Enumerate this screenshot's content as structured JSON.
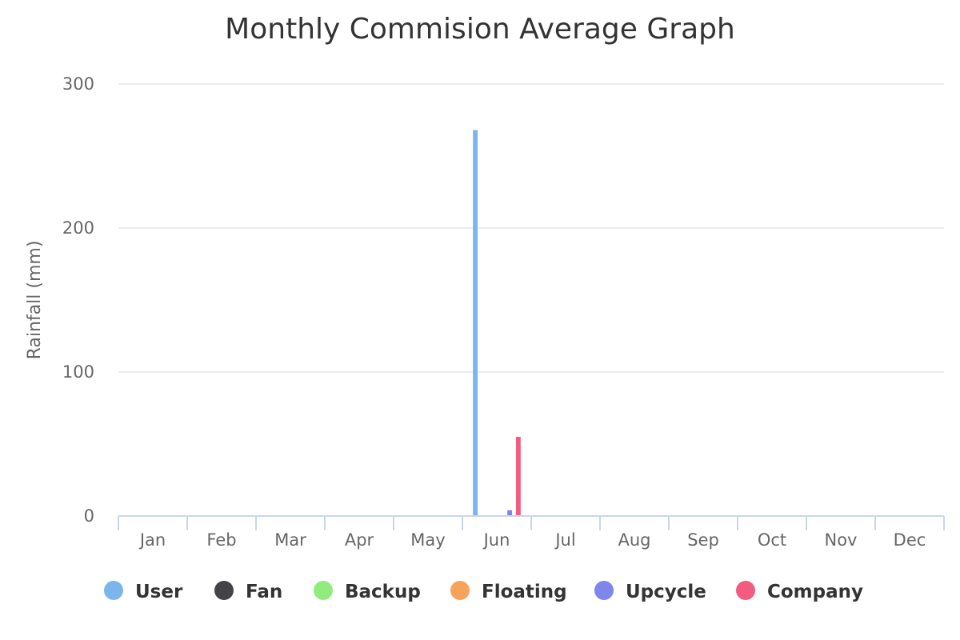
{
  "chart_data": {
    "type": "bar",
    "title": "Monthly Commision Average Graph",
    "xlabel": "",
    "ylabel": "Rainfall (mm)",
    "ylim": [
      0,
      300
    ],
    "yticks": [
      0,
      100,
      200,
      300
    ],
    "categories": [
      "Jan",
      "Feb",
      "Mar",
      "Apr",
      "May",
      "Jun",
      "Jul",
      "Aug",
      "Sep",
      "Oct",
      "Nov",
      "Dec"
    ],
    "grid": true,
    "legend_position": "bottom",
    "series": [
      {
        "name": "User",
        "color": "#7cb5ec",
        "values": [
          0,
          0,
          0,
          0,
          0,
          268,
          0,
          0,
          0,
          0,
          0,
          0
        ]
      },
      {
        "name": "Fan",
        "color": "#434348",
        "values": [
          0,
          0,
          0,
          0,
          0,
          0,
          0,
          0,
          0,
          0,
          0,
          0
        ]
      },
      {
        "name": "Backup",
        "color": "#90ed7d",
        "values": [
          0,
          0,
          0,
          0,
          0,
          0,
          0,
          0,
          0,
          0,
          0,
          0
        ]
      },
      {
        "name": "Floating",
        "color": "#f7a35c",
        "values": [
          0,
          0,
          0,
          0,
          0,
          0,
          0,
          0,
          0,
          0,
          0,
          0
        ]
      },
      {
        "name": "Upcycle",
        "color": "#8085e9",
        "values": [
          0,
          0,
          0,
          0,
          0,
          4,
          0,
          0,
          0,
          0,
          0,
          0
        ]
      },
      {
        "name": "Company",
        "color": "#f15c80",
        "values": [
          0,
          0,
          0,
          0,
          0,
          55,
          0,
          0,
          0,
          0,
          0,
          0
        ]
      }
    ]
  },
  "colors": {
    "grid": "#e6e6e6",
    "axis": "#ccd6eb",
    "text": "#333333",
    "muted_text": "#666666"
  }
}
